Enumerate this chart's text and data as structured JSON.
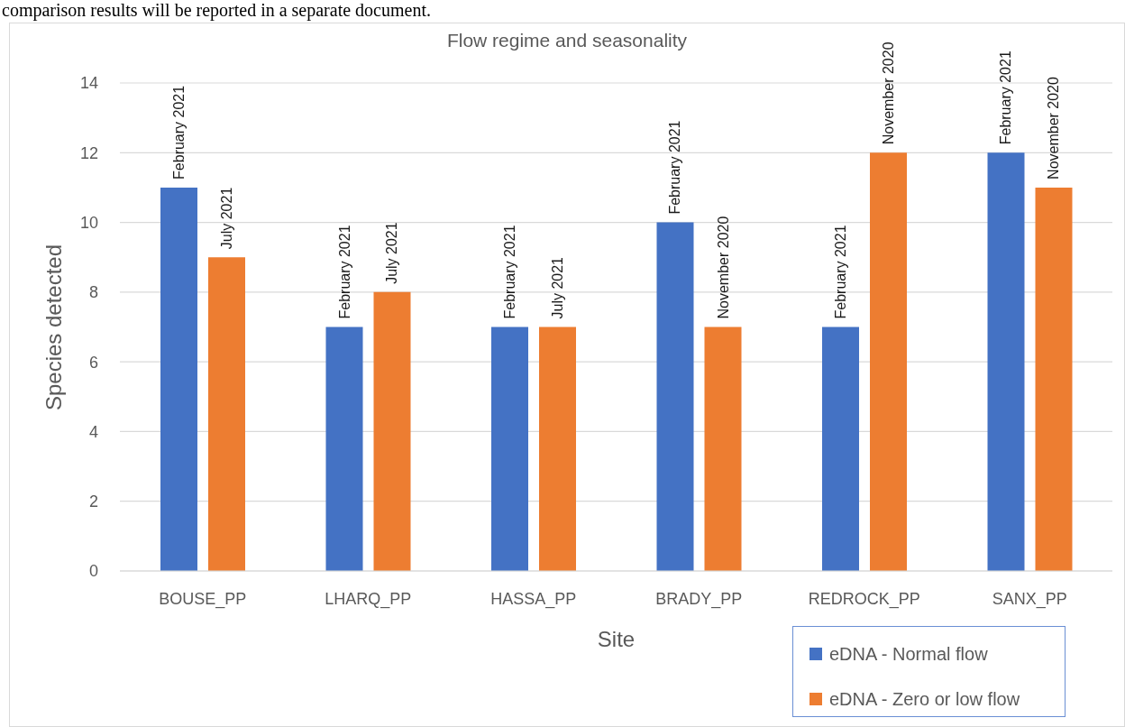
{
  "chart_data": {
    "type": "bar",
    "title": "Flow regime and seasonality",
    "xlabel": "Site",
    "ylabel": "Species detected",
    "annotations": [
      "comparison results will be reported in a separate document."
    ],
    "categories": [
      "BOUSE_PP",
      "LHARQ_PP",
      "HASSA_PP",
      "BRADY_PP",
      "REDROCK_PP",
      "SANX_PP"
    ],
    "series": [
      {
        "name": "eDNA - Normal flow",
        "color": "#4472c4",
        "values": [
          11,
          7,
          7,
          10,
          7,
          12
        ],
        "value_labels": [
          "February 2021",
          "February 2021",
          "February 2021",
          "February 2021",
          "February 2021",
          "February 2021"
        ]
      },
      {
        "name": "eDNA - Zero or low flow",
        "color": "#ed7d31",
        "values": [
          9,
          8,
          7,
          7,
          12,
          11
        ],
        "value_labels": [
          "July 2021",
          "July 2021",
          "July 2021",
          "November 2020",
          "November 2020",
          "November 2020"
        ]
      }
    ],
    "ylim": [
      0,
      14
    ],
    "yticks": [
      0,
      2,
      4,
      6,
      8,
      10,
      12,
      14
    ],
    "grid": "y",
    "legend": "bottom right"
  }
}
